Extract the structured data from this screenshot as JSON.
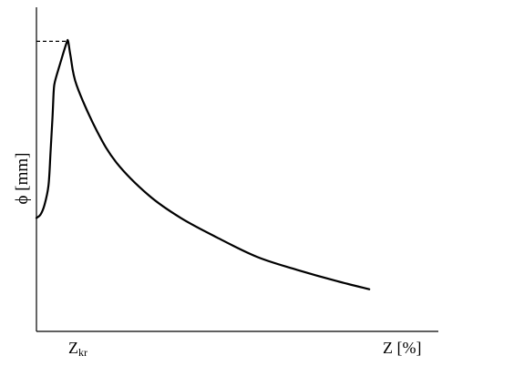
{
  "chart_data": {
    "type": "line",
    "xlabel": "Z [%]",
    "ylabel": "ϕ [mm]",
    "x_tick_labels": [
      {
        "base": "Z",
        "sub": "kr"
      }
    ],
    "grid": false,
    "series": [
      {
        "points": [
          [
            0.0,
            0.35
          ],
          [
            0.01,
            0.36
          ],
          [
            0.02,
            0.39
          ],
          [
            0.03,
            0.45
          ],
          [
            0.035,
            0.55
          ],
          [
            0.04,
            0.66
          ],
          [
            0.043,
            0.74
          ],
          [
            0.046,
            0.77
          ],
          [
            0.06,
            0.83
          ],
          [
            0.075,
            0.89
          ],
          [
            0.079,
            0.895
          ],
          [
            0.085,
            0.85
          ],
          [
            0.1,
            0.76
          ],
          [
            0.15,
            0.62
          ],
          [
            0.2,
            0.52
          ],
          [
            0.28,
            0.42
          ],
          [
            0.36,
            0.35
          ],
          [
            0.45,
            0.29
          ],
          [
            0.55,
            0.23
          ],
          [
            0.65,
            0.19
          ],
          [
            0.75,
            0.155
          ],
          [
            0.83,
            0.13
          ]
        ]
      }
    ],
    "reference_lines": [
      {
        "style": "dashed",
        "from": [
          0.0,
          0.895
        ],
        "to": [
          0.079,
          0.895
        ]
      }
    ],
    "xlim": [
      0,
      1
    ],
    "ylim": [
      0,
      1
    ]
  }
}
